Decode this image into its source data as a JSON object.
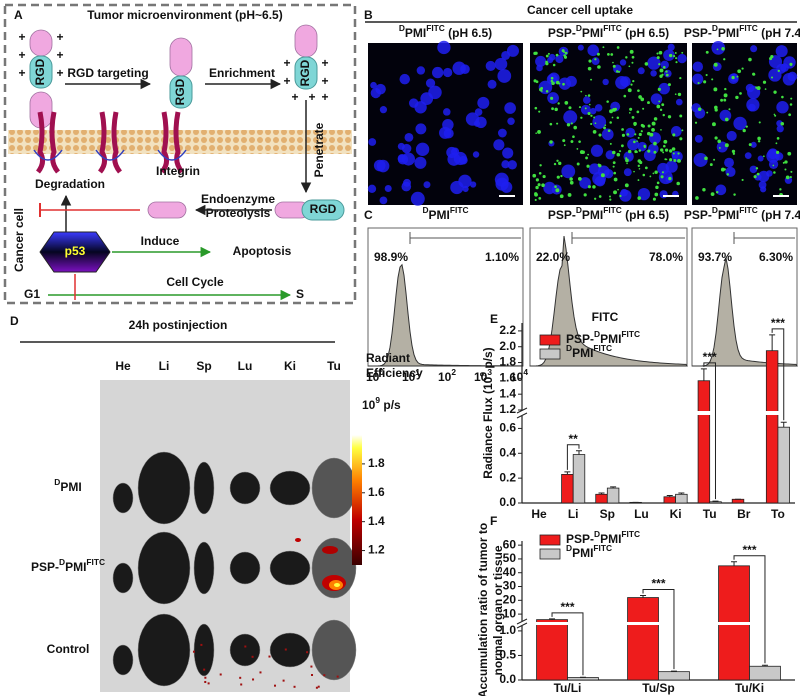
{
  "panel_a": {
    "letter": "A",
    "title": "Tumor microenvironment (pH~6.5)",
    "plus": "+",
    "rgd": "RGD",
    "targeting": "RGD targeting",
    "enrichment": "Enrichment",
    "integrin": "Integrin",
    "penetrate": "Penetrate",
    "degradation": "Degradation",
    "endoenzyme": "Endoenzyme",
    "proteolysis": "Proteolysis",
    "cancer_cell": "Cancer cell",
    "p53": "p53",
    "induce": "Induce",
    "apoptosis": "Apoptosis",
    "cell_cycle": "Cell Cycle",
    "g1": "G1",
    "s": "S"
  },
  "panel_b": {
    "letter": "B",
    "title": "Cancer cell uptake",
    "images": [
      {
        "label": [
          {
            "sup": "D"
          },
          {
            "text": "PMI"
          },
          {
            "sup": "FITC"
          },
          {
            "text": " (pH 6.5)"
          }
        ]
      },
      {
        "label": [
          {
            "text": "PSP-"
          },
          {
            "sup": "D"
          },
          {
            "text": "PMI"
          },
          {
            "sup": "FITC"
          },
          {
            "text": " (pH 6.5)"
          }
        ]
      },
      {
        "label": [
          {
            "text": "PSP-"
          },
          {
            "sup": "D"
          },
          {
            "text": "PMI"
          },
          {
            "sup": "FITC"
          },
          {
            "text": " (pH 7.4)"
          }
        ]
      }
    ]
  },
  "panel_c": {
    "letter": "C",
    "plots": [
      {
        "label": [
          {
            "sup": "D"
          },
          {
            "text": "PMI"
          },
          {
            "sup": "FITC"
          }
        ],
        "left": "98.9%",
        "right": "1.10%"
      },
      {
        "label": [
          {
            "text": "PSP-"
          },
          {
            "sup": "D"
          },
          {
            "text": "PMI"
          },
          {
            "sup": "FITC"
          },
          {
            "text": " (pH 6.5)"
          }
        ],
        "left": "22.0%",
        "right": "78.0%"
      },
      {
        "label": [
          {
            "text": "PSP-"
          },
          {
            "sup": "D"
          },
          {
            "text": "PMI"
          },
          {
            "sup": "FITC"
          },
          {
            "text": " (pH 7.4)"
          }
        ],
        "left": "93.7%",
        "right": "6.30%"
      }
    ],
    "xticks": [
      [
        {
          "text": "10"
        },
        {
          "sup": "0"
        }
      ],
      [
        {
          "text": "10"
        },
        {
          "sup": "1"
        }
      ],
      [
        {
          "text": "10"
        },
        {
          "sup": "2"
        }
      ],
      [
        {
          "text": "10"
        },
        {
          "sup": "3"
        }
      ],
      [
        {
          "text": "10"
        },
        {
          "sup": "4"
        }
      ]
    ]
  },
  "panel_d": {
    "letter": "D",
    "title": "24h postinjection",
    "organs": [
      "He",
      "Li",
      "Sp",
      "Lu",
      "Ki",
      "Tu"
    ],
    "rows": [
      [
        {
          "sup": "D"
        },
        {
          "text": "PMI"
        }
      ],
      [
        {
          "text": "PSP-"
        },
        {
          "sup": "D"
        },
        {
          "text": "PMI"
        },
        {
          "sup": "FITC"
        }
      ],
      [
        {
          "text": "Control"
        }
      ]
    ],
    "colorbar": {
      "title": [
        "Radiant",
        "Efficiency"
      ],
      "unit": [
        {
          "text": "10"
        },
        {
          "sup": "9"
        },
        {
          "text": " p/s"
        }
      ],
      "lim": [
        1.1,
        2.0
      ],
      "ticks": [
        1.2,
        1.4,
        1.6,
        1.8
      ]
    }
  },
  "chart_data": [
    {
      "type": "bar",
      "letter": "E",
      "title": "FITC",
      "y_label": [
        {
          "text": "Radiance Flux (10"
        },
        {
          "sup": "9"
        },
        {
          "text": " p/s)"
        }
      ],
      "categories": [
        "He",
        "Li",
        "Sp",
        "Lu",
        "Ki",
        "Tu",
        "Br",
        "To"
      ],
      "series": [
        {
          "name": [
            {
              "text": "PSP-"
            },
            {
              "sup": "D"
            },
            {
              "text": "PMI"
            },
            {
              "sup": "FITC"
            }
          ],
          "color": "#ee1c1c",
          "values": [
            0,
            0.23,
            0.07,
            0.005,
            0.05,
            1.57,
            0.03,
            1.95
          ],
          "errors": [
            0,
            0.02,
            0.01,
            0,
            0.01,
            0.15,
            0,
            0.2
          ]
        },
        {
          "name": [
            {
              "sup": "D"
            },
            {
              "text": "PMI"
            },
            {
              "sup": "FITC"
            }
          ],
          "color": "#c8c8c8",
          "values": [
            0,
            0.39,
            0.12,
            0,
            0.07,
            0.01,
            0,
            0.61
          ],
          "errors": [
            0,
            0.03,
            0.01,
            0,
            0.01,
            0.005,
            0,
            0.04
          ]
        }
      ],
      "y_segments": [
        {
          "ylim": [
            0,
            0.7
          ],
          "yticks": [
            {
              "value": 0,
              "label": "0.0"
            },
            0.2,
            0.4,
            0.6
          ]
        },
        {
          "ylim": [
            1.2,
            2.3
          ],
          "yticks": [
            1.2,
            1.4,
            1.6,
            1.8,
            {
              "value": 2,
              "label": "2.0"
            },
            2.2
          ]
        }
      ],
      "significance": [
        {
          "category": "Li",
          "label": "**"
        },
        {
          "category": "Tu",
          "label": "***"
        },
        {
          "category": "To",
          "label": "***"
        }
      ]
    },
    {
      "type": "bar",
      "letter": "F",
      "y_label": [
        [
          {
            "text": "Accumulation ratio of tumor to"
          }
        ],
        [
          {
            "text": "normal organ or tissue"
          }
        ]
      ],
      "categories": [
        "Tu/Li",
        "Tu/Sp",
        "Tu/Ki"
      ],
      "series": [
        {
          "name": [
            {
              "text": "PSP-"
            },
            {
              "sup": "D"
            },
            {
              "text": "PMI"
            },
            {
              "sup": "FITC"
            }
          ],
          "color": "#ee1c1c",
          "values": [
            6,
            22,
            45
          ],
          "errors": [
            0.5,
            1.5,
            3
          ]
        },
        {
          "name": [
            {
              "sup": "D"
            },
            {
              "text": "PMI"
            },
            {
              "sup": "FITC"
            }
          ],
          "color": "#c8c8c8",
          "values": [
            0.05,
            0.17,
            0.28
          ],
          "errors": [
            0.005,
            0.01,
            0.02
          ]
        }
      ],
      "y_segments": [
        {
          "ylim": [
            0,
            1.1
          ],
          "yticks": [
            {
              "value": 0,
              "label": "0.0"
            },
            0.5,
            {
              "value": 1,
              "label": "1.0"
            }
          ]
        },
        {
          "ylim": [
            5,
            63
          ],
          "yticks": [
            10,
            20,
            30,
            40,
            50,
            60
          ]
        }
      ],
      "significance": [
        {
          "category": "Tu/Li",
          "label": "***"
        },
        {
          "category": "Tu/Sp",
          "label": "***"
        },
        {
          "category": "Tu/Ki",
          "label": "***"
        }
      ]
    }
  ]
}
